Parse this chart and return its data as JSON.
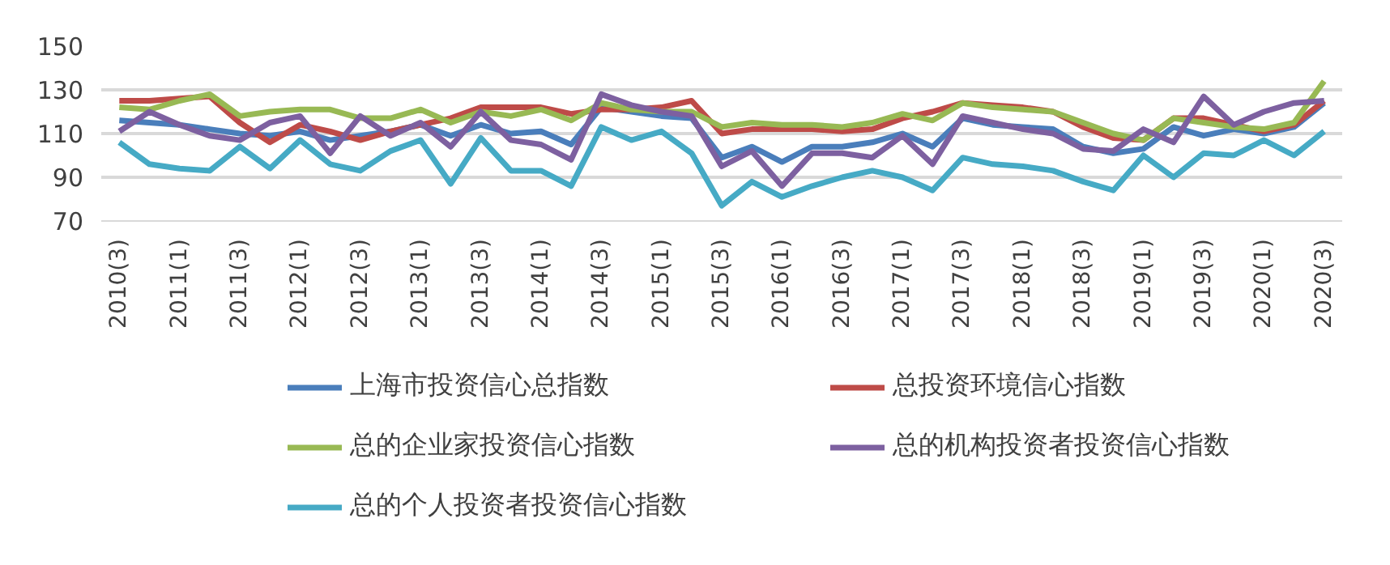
{
  "chart_data": {
    "type": "line",
    "categories": [
      "2010(3)",
      null,
      "2011(1)",
      null,
      "2011(3)",
      null,
      "2012(1)",
      null,
      "2012(3)",
      null,
      "2013(1)",
      null,
      "2013(3)",
      null,
      "2014(1)",
      null,
      "2014(3)",
      null,
      "2015(1)",
      null,
      "2015(3)",
      null,
      "2016(1)",
      null,
      "2016(3)",
      null,
      "2017(1)",
      null,
      "2017(3)",
      null,
      "2018(1)",
      null,
      "2018(3)",
      null,
      "2019(1)",
      null,
      "2019(3)",
      null,
      "2020(1)",
      null,
      "2020(3)"
    ],
    "series": [
      {
        "name": "上海市投资信心总指数",
        "color": "#4a7ebb",
        "values": [
          116,
          115,
          114,
          112,
          110,
          109,
          111,
          107,
          109,
          111,
          114,
          109,
          114,
          110,
          111,
          105,
          122,
          120,
          118,
          117,
          99,
          104,
          97,
          104,
          104,
          106,
          110,
          104,
          117,
          114,
          113,
          112,
          104,
          101,
          103,
          113,
          109,
          112,
          110,
          113,
          124
        ]
      },
      {
        "name": "总投资环境信心指数",
        "color": "#be4b48",
        "values": [
          125,
          125,
          126,
          127,
          115,
          106,
          114,
          111,
          107,
          111,
          114,
          117,
          122,
          122,
          122,
          119,
          121,
          121,
          122,
          125,
          110,
          112,
          112,
          112,
          111,
          112,
          117,
          120,
          124,
          123,
          122,
          120,
          113,
          108,
          107,
          117,
          117,
          114,
          111,
          114,
          125
        ]
      },
      {
        "name": "总的企业家投资信心指数",
        "color": "#98b954",
        "values": [
          122,
          121,
          125,
          128,
          118,
          120,
          121,
          121,
          117,
          117,
          121,
          115,
          120,
          118,
          121,
          116,
          124,
          121,
          120,
          120,
          113,
          115,
          114,
          114,
          113,
          115,
          119,
          116,
          124,
          122,
          121,
          120,
          115,
          110,
          107,
          117,
          115,
          113,
          112,
          115,
          134
        ]
      },
      {
        "name": "总的机构投资者投资信心指数",
        "color": "#7d60a0",
        "values": [
          111,
          120,
          114,
          109,
          107,
          115,
          118,
          101,
          118,
          109,
          115,
          104,
          120,
          107,
          105,
          98,
          128,
          123,
          120,
          118,
          95,
          102,
          86,
          101,
          101,
          99,
          109,
          96,
          118,
          115,
          112,
          110,
          103,
          102,
          112,
          106,
          127,
          114,
          120,
          124,
          125
        ]
      },
      {
        "name": "总的个人投资者投资信心指数",
        "color": "#46aac5",
        "values": [
          106,
          96,
          94,
          93,
          104,
          94,
          107,
          96,
          93,
          102,
          107,
          87,
          108,
          93,
          93,
          86,
          113,
          107,
          111,
          101,
          77,
          88,
          81,
          86,
          90,
          93,
          90,
          84,
          99,
          96,
          95,
          93,
          88,
          84,
          100,
          90,
          101,
          100,
          107,
          100,
          111
        ]
      }
    ],
    "ylim": [
      70,
      150
    ],
    "yticks": [
      70,
      90,
      110,
      130,
      150
    ],
    "grid": "y",
    "legend": "bottom",
    "marker": "none",
    "line_style": "solid"
  }
}
